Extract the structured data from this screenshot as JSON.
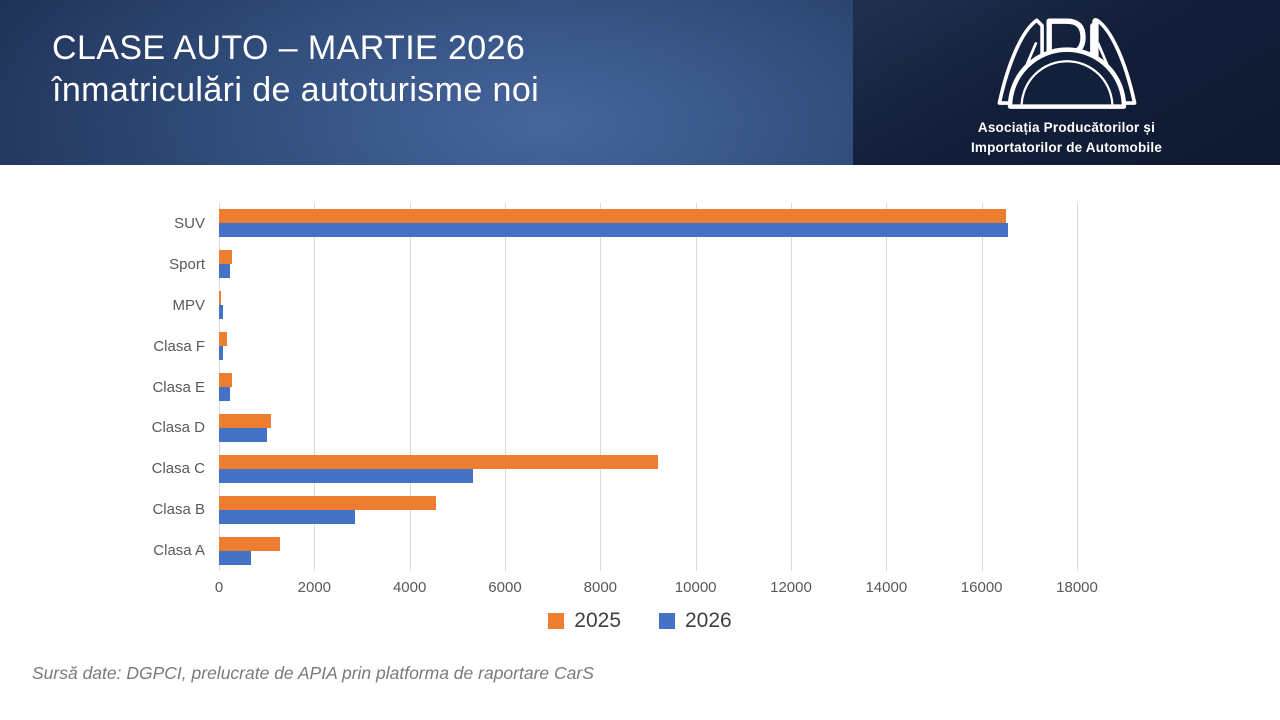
{
  "header": {
    "title_line1": "CLASE AUTO – MARTIE 2026",
    "title_line2": "înmatriculări de autoturisme noi",
    "logo": {
      "acronym": "APIA",
      "tagline_line1": "Asociația Producătorilor și",
      "tagline_line2": "Importatorilor de Automobile"
    }
  },
  "chart_data": {
    "type": "bar",
    "orientation": "horizontal",
    "title": "CLASE AUTO – MARTIE 2026 înmatriculări de autoturisme noi",
    "categories": [
      "SUV",
      "Sport",
      "MPV",
      "Clasa F",
      "Clasa E",
      "Clasa D",
      "Clasa C",
      "Clasa B",
      "Clasa A"
    ],
    "series": [
      {
        "name": "2025",
        "color": "#ED7D31",
        "values": [
          16500,
          270,
          40,
          160,
          280,
          1100,
          9200,
          4550,
          1280
        ]
      },
      {
        "name": "2026",
        "color": "#4472C4",
        "values": [
          16550,
          230,
          90,
          90,
          230,
          1000,
          5330,
          2860,
          670
        ]
      }
    ],
    "xlim": [
      0,
      18000
    ],
    "x_ticks": [
      0,
      2000,
      4000,
      6000,
      8000,
      10000,
      12000,
      14000,
      16000,
      18000
    ],
    "grid": "vertical-only",
    "legend_position": "bottom"
  },
  "footer": {
    "source_note": "Sursă date: DGPCI, prelucrate de APIA prin platforma de raportare CarS"
  },
  "colors": {
    "series_2025": "#ED7D31",
    "series_2026": "#4472C4",
    "gridline": "#D9D9D9",
    "axis_text": "#595959",
    "legend_text": "#404040",
    "footer_text": "#7A7A7A",
    "header_navy": "#131F3A",
    "title_text": "#FFFFFF"
  }
}
